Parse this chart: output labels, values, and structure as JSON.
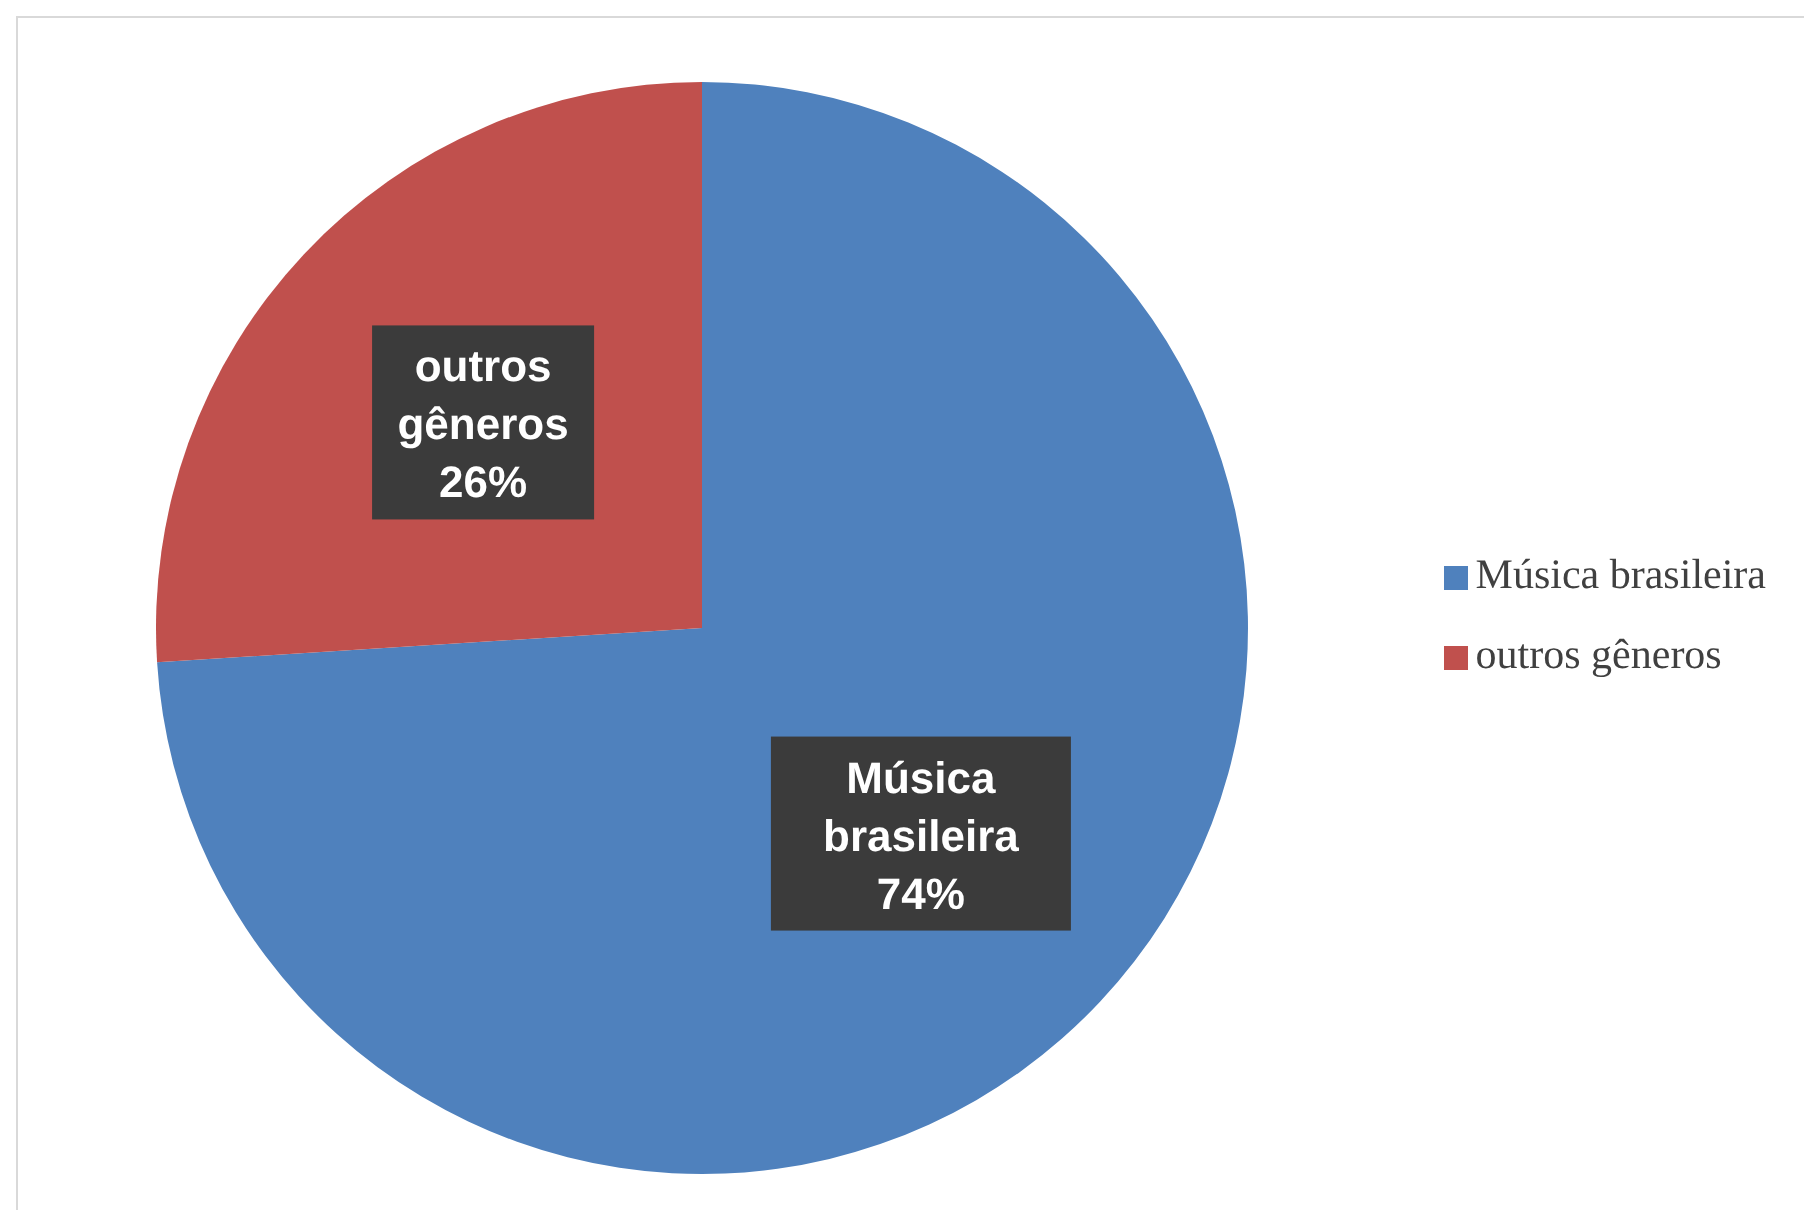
{
  "chart_data": {
    "type": "pie",
    "categories": [
      "Música brasileira",
      "outros gêneros"
    ],
    "values": [
      74,
      26
    ],
    "colors": [
      "#4f81bd",
      "#c0504d"
    ],
    "value_labels": [
      "74%",
      "26%"
    ],
    "legend": "right"
  }
}
